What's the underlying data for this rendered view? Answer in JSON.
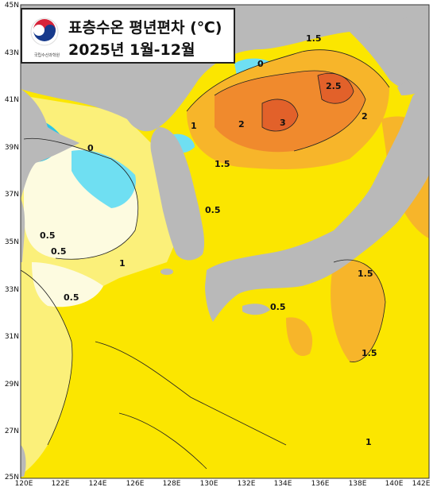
{
  "title": {
    "line1": "표층수온 평년편차 (℃)",
    "line2": "2025년 1월-12월",
    "org": "국립수산과학원"
  },
  "lat_labels": [
    "45N",
    "43N",
    "41N",
    "39N",
    "37N",
    "35N",
    "33N",
    "31N",
    "29N",
    "27N",
    "25N"
  ],
  "lon_labels": [
    "120E",
    "122E",
    "124E",
    "126E",
    "128E",
    "130E",
    "132E",
    "134E",
    "136E",
    "138E",
    "140E",
    "142E"
  ],
  "contour_labels": [
    "0",
    "0.5",
    "1",
    "1.5",
    "2",
    "2.5",
    "3"
  ],
  "colors": {
    "land": "#b9b9b9",
    "anomaly_neg": "#2cc6e6",
    "anomaly_0": "#fdfbe0",
    "anomaly_05": "#fbf07a",
    "anomaly_1": "#fbe600",
    "anomaly_15": "#f7b52a",
    "anomaly_2": "#f08a2d",
    "anomaly_25": "#e2612a"
  }
}
